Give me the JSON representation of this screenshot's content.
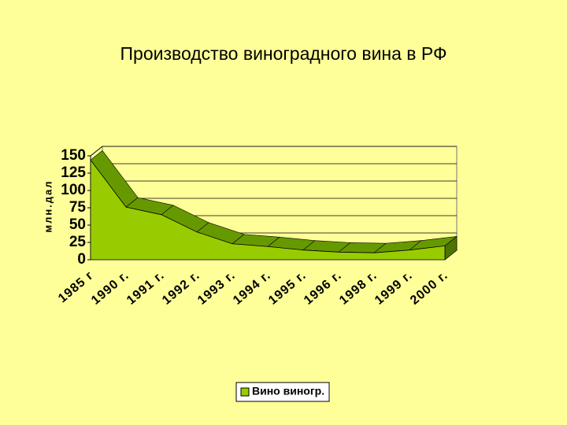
{
  "chart_data": {
    "type": "area3d",
    "title": "Производство виноградного вина в РФ",
    "y_label": "млн.дал",
    "categories": [
      "1985 г",
      "1990 г.",
      "1991 г.",
      "1992 г.",
      "1993 г.",
      "1994 г.",
      "1995 г.",
      "1996 г.",
      "1998 г.",
      "1999 г.",
      "2000 г."
    ],
    "series": [
      {
        "name": "Вино виногр.",
        "color": "#99cc00",
        "values": [
          144,
          76,
          65,
          40,
          23,
          19,
          14,
          11,
          10,
          14,
          20
        ]
      }
    ],
    "ylim": [
      0,
      150
    ],
    "yticks": [
      0,
      25,
      50,
      75,
      100,
      125,
      150
    ],
    "grid": true
  }
}
